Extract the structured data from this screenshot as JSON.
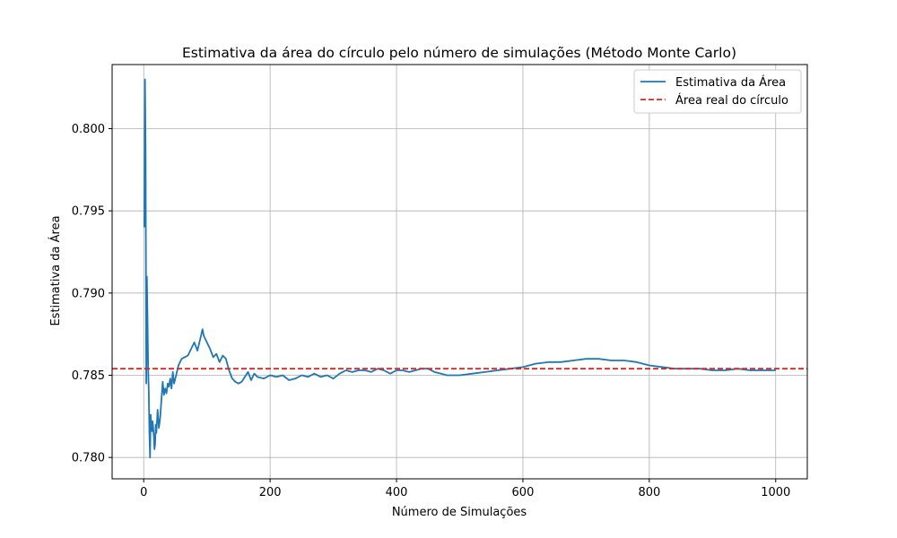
{
  "chart_data": {
    "type": "line",
    "title": "Estimativa da área do círculo pelo número de simulações (Método Monte Carlo)",
    "xlabel": "Número de Simulações",
    "ylabel": "Estimativa da Área",
    "xlim": [
      -50,
      1050
    ],
    "ylim": [
      0.7787,
      0.8039
    ],
    "xticks": [
      0,
      200,
      400,
      600,
      800,
      1000
    ],
    "yticks": [
      0.78,
      0.785,
      0.79,
      0.795,
      0.8
    ],
    "xtick_labels": [
      "0",
      "200",
      "400",
      "600",
      "800",
      "1000"
    ],
    "ytick_labels": [
      "0.780",
      "0.785",
      "0.790",
      "0.795",
      "0.800"
    ],
    "grid": true,
    "legend_position": "top-right",
    "series": [
      {
        "name": "Estimativa da Área",
        "color": "#1f77b4",
        "style": "solid",
        "x": [
          1,
          2,
          3,
          4,
          5,
          6,
          7,
          8,
          9,
          10,
          11,
          12,
          13,
          14,
          15,
          16,
          17,
          18,
          19,
          20,
          22,
          24,
          26,
          28,
          30,
          32,
          34,
          36,
          38,
          40,
          42,
          44,
          46,
          48,
          50,
          55,
          60,
          65,
          70,
          75,
          80,
          85,
          90,
          93,
          95,
          100,
          105,
          110,
          115,
          120,
          125,
          130,
          135,
          140,
          145,
          150,
          155,
          160,
          165,
          170,
          175,
          180,
          190,
          200,
          210,
          220,
          230,
          240,
          250,
          260,
          270,
          280,
          290,
          300,
          310,
          320,
          330,
          340,
          350,
          360,
          370,
          380,
          390,
          400,
          410,
          420,
          430,
          440,
          450,
          460,
          470,
          480,
          490,
          500,
          520,
          540,
          560,
          580,
          600,
          620,
          640,
          660,
          680,
          700,
          720,
          740,
          760,
          780,
          800,
          820,
          840,
          860,
          880,
          900,
          920,
          940,
          960,
          980,
          1000
        ],
        "y": [
          0.794,
          0.803,
          0.7985,
          0.7845,
          0.791,
          0.7885,
          0.7855,
          0.784,
          0.7815,
          0.78,
          0.7826,
          0.782,
          0.7816,
          0.7822,
          0.7818,
          0.7813,
          0.7805,
          0.7808,
          0.782,
          0.7815,
          0.7829,
          0.7818,
          0.7824,
          0.7835,
          0.7846,
          0.7838,
          0.7842,
          0.7839,
          0.7845,
          0.7843,
          0.7848,
          0.7842,
          0.7852,
          0.7845,
          0.7848,
          0.7856,
          0.786,
          0.7861,
          0.7862,
          0.7866,
          0.787,
          0.7865,
          0.7873,
          0.7878,
          0.7874,
          0.787,
          0.7866,
          0.7861,
          0.7863,
          0.7858,
          0.7862,
          0.786,
          0.7853,
          0.7848,
          0.7846,
          0.7845,
          0.7846,
          0.7849,
          0.7852,
          0.7847,
          0.7851,
          0.7849,
          0.7848,
          0.785,
          0.7849,
          0.785,
          0.7847,
          0.7848,
          0.785,
          0.7849,
          0.7851,
          0.7849,
          0.785,
          0.7848,
          0.7851,
          0.7853,
          0.7852,
          0.7853,
          0.7853,
          0.7852,
          0.7854,
          0.7853,
          0.7851,
          0.7853,
          0.7853,
          0.7852,
          0.7853,
          0.7854,
          0.7854,
          0.7852,
          0.7851,
          0.785,
          0.785,
          0.785,
          0.7851,
          0.7852,
          0.7853,
          0.7854,
          0.7855,
          0.7857,
          0.7858,
          0.7858,
          0.7859,
          0.786,
          0.786,
          0.7859,
          0.7859,
          0.7858,
          0.7856,
          0.7855,
          0.7854,
          0.7854,
          0.7854,
          0.7853,
          0.7853,
          0.7854,
          0.7853,
          0.7853,
          0.7853
        ]
      },
      {
        "name": "Área real do círculo",
        "color": "#d62728",
        "style": "dashed",
        "y": 0.7854
      }
    ]
  }
}
